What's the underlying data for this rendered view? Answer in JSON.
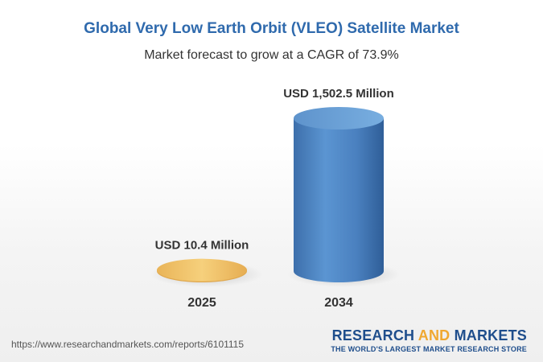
{
  "chart_data": {
    "type": "bar",
    "title": "Global Very Low Earth Orbit (VLEO) Satellite Market",
    "subtitle": "Market forecast to grow at a CAGR of 73.9%",
    "categories": [
      "2025",
      "2034"
    ],
    "values": [
      10.4,
      1502.5
    ],
    "units": "USD Million",
    "data_labels": [
      "USD 10.4 Million",
      "USD 1,502.5 Million"
    ],
    "ylim": [
      0,
      1502.5
    ],
    "colors": [
      "#f2c46a",
      "#4f86c6"
    ]
  },
  "footer": {
    "url": "https://www.researchandmarkets.com/reports/6101115",
    "logo_part1": "RESEARCH",
    "logo_and": "AND",
    "logo_part2": "MARKETS",
    "tagline": "THE WORLD'S LARGEST MARKET RESEARCH STORE"
  },
  "colors": {
    "title": "#2f6aad",
    "logo_primary": "#1f4e8c",
    "logo_accent": "#f0a830"
  }
}
